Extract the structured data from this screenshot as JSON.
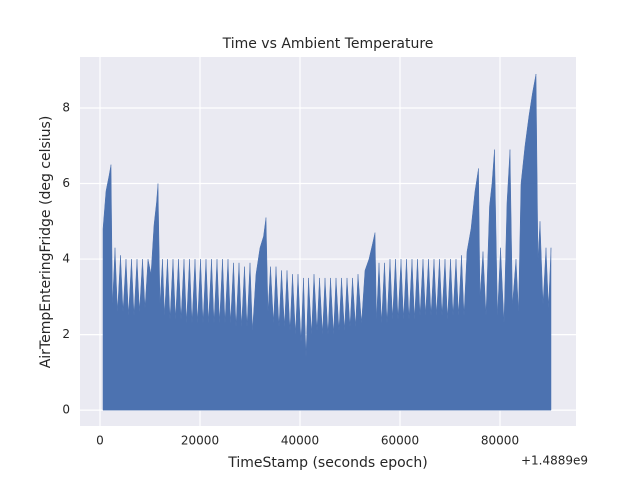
{
  "chart_data": {
    "type": "area",
    "title": "Time vs Ambient Temperature",
    "xlabel": "TimeStamp (seconds epoch)",
    "ylabel": "AirTempEnteringFridge (deg celsius)",
    "x_offset_label": "+1.4889e9",
    "x": [
      600,
      1200,
      1800,
      2200,
      2500,
      3000,
      3500,
      4100,
      4600,
      5200,
      5700,
      6300,
      6800,
      7400,
      7900,
      8500,
      9000,
      9600,
      10200,
      10800,
      11300,
      11600,
      12000,
      12500,
      12900,
      13500,
      14000,
      14600,
      15100,
      15700,
      16200,
      16800,
      17300,
      17900,
      18400,
      19000,
      19500,
      20100,
      20600,
      21200,
      21700,
      22300,
      22800,
      23400,
      23900,
      24500,
      25000,
      25600,
      26100,
      26700,
      27200,
      27800,
      28300,
      28900,
      29400,
      30000,
      30500,
      31200,
      32000,
      32700,
      33200,
      33600,
      34100,
      34700,
      35200,
      35800,
      36300,
      36900,
      37400,
      38000,
      38500,
      39100,
      39600,
      40200,
      40700,
      41200,
      41700,
      42300,
      42800,
      43400,
      43900,
      44500,
      45000,
      45600,
      46100,
      46700,
      47200,
      47800,
      48300,
      48900,
      49400,
      50000,
      50500,
      51100,
      51600,
      52300,
      53000,
      53800,
      54500,
      55000,
      55300,
      55800,
      56300,
      56900,
      57400,
      58000,
      58500,
      59100,
      59600,
      60200,
      60700,
      61300,
      61800,
      62400,
      62900,
      63500,
      64000,
      64600,
      65100,
      65700,
      66200,
      66800,
      67300,
      67900,
      68400,
      69000,
      69500,
      70100,
      70600,
      71200,
      71700,
      72300,
      72800,
      73400,
      74200,
      75000,
      75700,
      76000,
      76600,
      77200,
      77900,
      78400,
      78900,
      79500,
      80100,
      80800,
      81400,
      82000,
      82500,
      83200,
      83700,
      84200,
      85000,
      85800,
      86500,
      87200,
      87600,
      88000,
      88600,
      89200,
      89700,
      90200
    ],
    "series": [
      {
        "name": "AirTempEnteringFridge",
        "color": "#4c72b0",
        "values": [
          4.8,
          5.8,
          6.2,
          6.5,
          2.8,
          4.3,
          2.6,
          4.1,
          2.6,
          4.0,
          2.5,
          4.0,
          2.5,
          4.0,
          2.6,
          4.0,
          2.7,
          4.0,
          3.6,
          4.9,
          5.5,
          6.0,
          2.8,
          4.0,
          2.5,
          4.0,
          2.4,
          4.0,
          2.4,
          4.0,
          2.4,
          4.0,
          2.3,
          4.0,
          2.3,
          4.0,
          2.3,
          4.0,
          2.3,
          4.0,
          2.3,
          4.0,
          2.3,
          4.0,
          2.3,
          4.0,
          2.3,
          4.0,
          2.3,
          3.9,
          2.2,
          3.9,
          2.2,
          3.8,
          2.2,
          3.9,
          2.1,
          3.6,
          4.3,
          4.6,
          5.1,
          2.6,
          3.8,
          2.3,
          3.8,
          2.2,
          3.7,
          2.2,
          3.7,
          2.1,
          3.6,
          2.0,
          3.6,
          1.8,
          3.5,
          1.4,
          3.5,
          2.0,
          3.6,
          2.1,
          3.5,
          2.0,
          3.5,
          2.0,
          3.5,
          2.0,
          3.5,
          2.1,
          3.5,
          2.1,
          3.5,
          2.2,
          3.5,
          2.2,
          3.6,
          2.3,
          3.7,
          4.0,
          4.4,
          4.7,
          2.4,
          3.9,
          2.3,
          3.9,
          2.3,
          4.0,
          2.4,
          4.0,
          2.4,
          4.0,
          2.4,
          4.0,
          2.4,
          4.0,
          2.4,
          4.0,
          2.5,
          4.0,
          2.5,
          4.0,
          2.5,
          4.0,
          2.5,
          4.0,
          2.5,
          4.0,
          2.4,
          4.0,
          2.5,
          4.0,
          2.5,
          4.1,
          2.5,
          4.2,
          4.8,
          5.8,
          6.4,
          3.0,
          4.2,
          2.5,
          5.4,
          6.0,
          6.9,
          2.5,
          4.3,
          2.3,
          5.5,
          6.9,
          2.8,
          4.0,
          2.6,
          6.0,
          7.0,
          7.8,
          8.4,
          8.9,
          4.0,
          5.0,
          2.8,
          4.3,
          2.7,
          4.3
        ]
      }
    ],
    "xlim": [
      -4000,
      95200
    ],
    "ylim": [
      -0.42,
      9.35
    ],
    "xticks": [
      0,
      20000,
      40000,
      60000,
      80000
    ],
    "yticks": [
      0,
      2,
      4,
      6,
      8
    ],
    "grid": true
  }
}
